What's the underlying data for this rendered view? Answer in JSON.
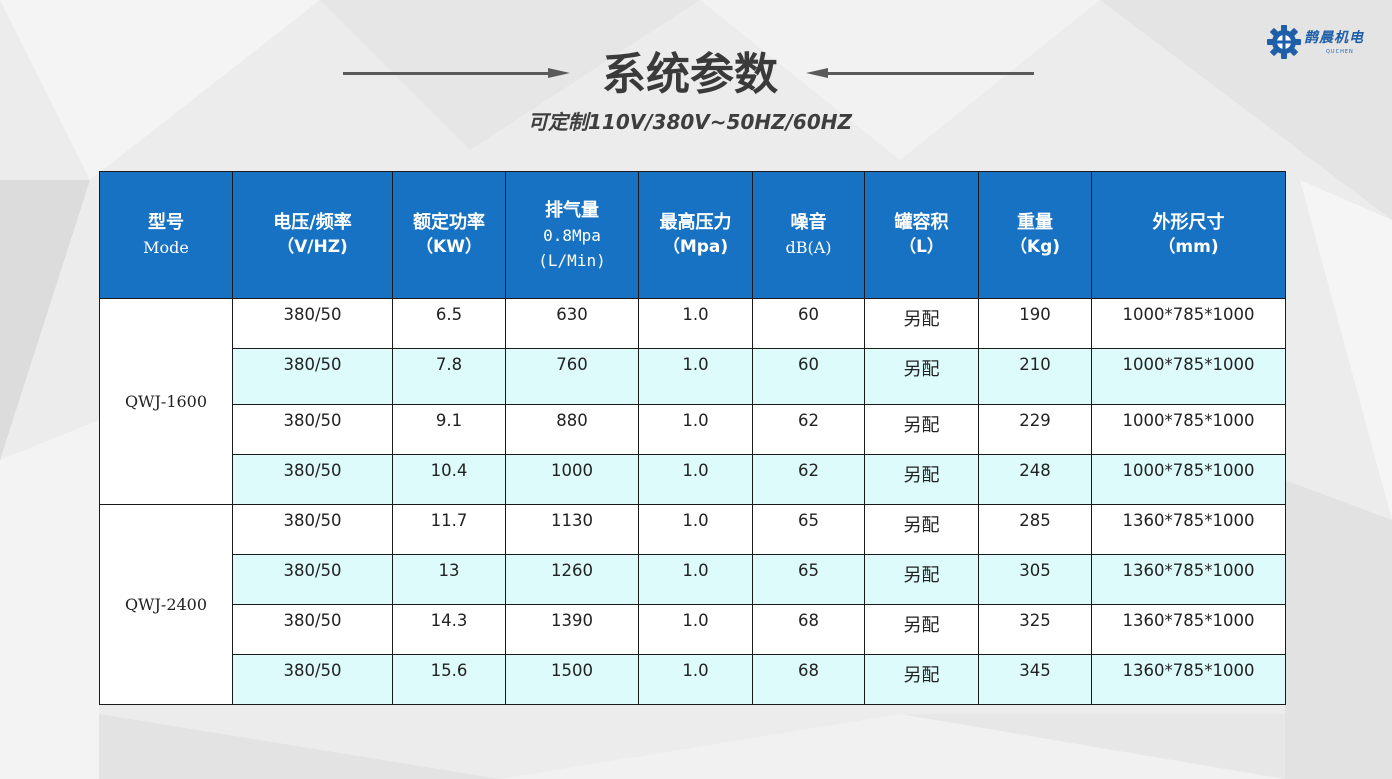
{
  "brand": {
    "logo_text": "鹊晨机电",
    "logo_sub": "QUCHEN",
    "logo_color": "#1f5ea8"
  },
  "page": {
    "title": "系统参数",
    "subtitle": "可定制110V/380V~50HZ/60HZ"
  },
  "colors": {
    "header_bg": "#1872c4",
    "row_alt_bg": "#ddfbfb",
    "row_bg": "#ffffff"
  },
  "table": {
    "headers": [
      {
        "line1": "型号",
        "line2": "Mode"
      },
      {
        "line1": "电压/频率",
        "line2": "（V/HZ)"
      },
      {
        "line1": "额定功率",
        "line2": "（KW）"
      },
      {
        "line1": "排气量",
        "line2": "0.8Mpa",
        "line3": "(L/Min)"
      },
      {
        "line1": "最高压力",
        "line2": "（Mpa)"
      },
      {
        "line1": "噪音",
        "line2": "dB(A)"
      },
      {
        "line1": "罐容积",
        "line2": "（L）"
      },
      {
        "line1": "重量",
        "line2": "（Kg)"
      },
      {
        "line1": "外形尺寸",
        "line2": "（mm)"
      }
    ],
    "groups": [
      {
        "model": "QWJ-1600",
        "rows": [
          {
            "voltage": "380/50",
            "power": "6.5",
            "flow": "630",
            "pressure": "1.0",
            "noise": "60",
            "tank": "另配",
            "weight": "190",
            "size": "1000*785*1000"
          },
          {
            "voltage": "380/50",
            "power": "7.8",
            "flow": "760",
            "pressure": "1.0",
            "noise": "60",
            "tank": "另配",
            "weight": "210",
            "size": "1000*785*1000"
          },
          {
            "voltage": "380/50",
            "power": "9.1",
            "flow": "880",
            "pressure": "1.0",
            "noise": "62",
            "tank": "另配",
            "weight": "229",
            "size": "1000*785*1000"
          },
          {
            "voltage": "380/50",
            "power": "10.4",
            "flow": "1000",
            "pressure": "1.0",
            "noise": "62",
            "tank": "另配",
            "weight": "248",
            "size": "1000*785*1000"
          }
        ]
      },
      {
        "model": "QWJ-2400",
        "rows": [
          {
            "voltage": "380/50",
            "power": "11.7",
            "flow": "1130",
            "pressure": "1.0",
            "noise": "65",
            "tank": "另配",
            "weight": "285",
            "size": "1360*785*1000"
          },
          {
            "voltage": "380/50",
            "power": "13",
            "flow": "1260",
            "pressure": "1.0",
            "noise": "65",
            "tank": "另配",
            "weight": "305",
            "size": "1360*785*1000"
          },
          {
            "voltage": "380/50",
            "power": "14.3",
            "flow": "1390",
            "pressure": "1.0",
            "noise": "68",
            "tank": "另配",
            "weight": "325",
            "size": "1360*785*1000"
          },
          {
            "voltage": "380/50",
            "power": "15.6",
            "flow": "1500",
            "pressure": "1.0",
            "noise": "68",
            "tank": "另配",
            "weight": "345",
            "size": "1360*785*1000"
          }
        ]
      }
    ]
  }
}
